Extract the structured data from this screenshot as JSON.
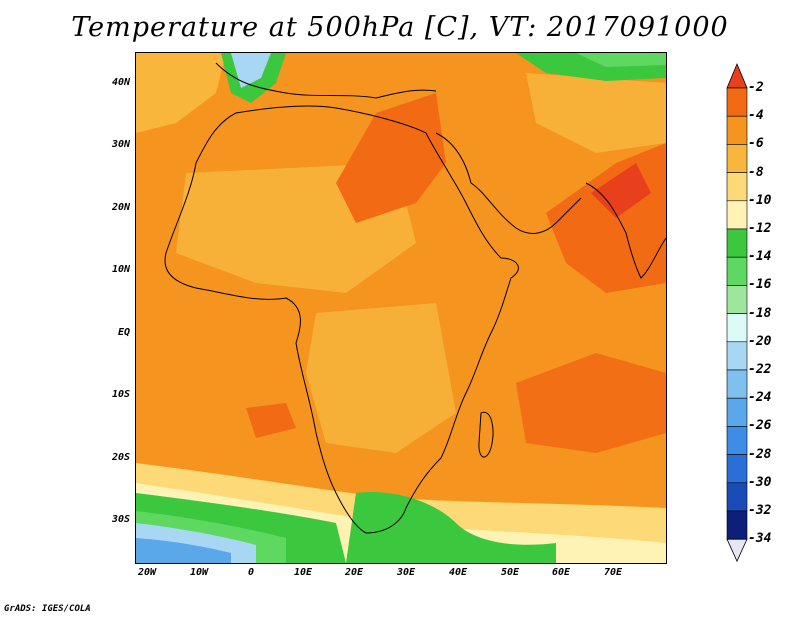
{
  "title": "Temperature at 500hPa [C], VT: 2017091000",
  "credit": "GrADS: IGES/COLA",
  "map": {
    "y_ticks": [
      "40N",
      "30N",
      "20N",
      "10N",
      "EQ",
      "10S",
      "20S",
      "30S"
    ],
    "x_ticks": [
      "20W",
      "10W",
      "0",
      "10E",
      "20E",
      "30E",
      "40E",
      "50E",
      "60E",
      "70E"
    ]
  },
  "colorbar": {
    "labels": [
      "-2",
      "-4",
      "-6",
      "-8",
      "-10",
      "-12",
      "-14",
      "-16",
      "-18",
      "-20",
      "-22",
      "-24",
      "-26",
      "-28",
      "-30",
      "-32",
      "-34"
    ],
    "colors": [
      "#e8401c",
      "#f36a14",
      "#f5941f",
      "#f8b63d",
      "#fdd978",
      "#fef2b4",
      "#3bc73e",
      "#5fd861",
      "#9ee69c",
      "#dcfbf7",
      "#a8d7f3",
      "#7ec0ee",
      "#5aa7ea",
      "#3d8de6",
      "#2a6fd8",
      "#1a4cb8",
      "#0e1f7a"
    ]
  },
  "chart_data": {
    "type": "heatmap",
    "title": "Temperature at 500hPa [C], VT: 2017091000",
    "units": "C",
    "region": {
      "lon_range": [
        -22,
        80
      ],
      "lat_range": [
        -37,
        45
      ]
    },
    "levels": [
      -2,
      -4,
      -6,
      -8,
      -10,
      -12,
      -14,
      -16,
      -18,
      -20,
      -22,
      -24,
      -26,
      -28,
      -30,
      -32,
      -34
    ],
    "dominant_pattern": "Most of Africa and surrounding oceans at -4 to -8 C; warmest (-2 to -4 C) over Egypt/Libya, Arabian Sea, northern India and SE Indian Ocean; coolest near southern tip (-12 to -14) and far south Atlantic (-20 to -28)"
  }
}
